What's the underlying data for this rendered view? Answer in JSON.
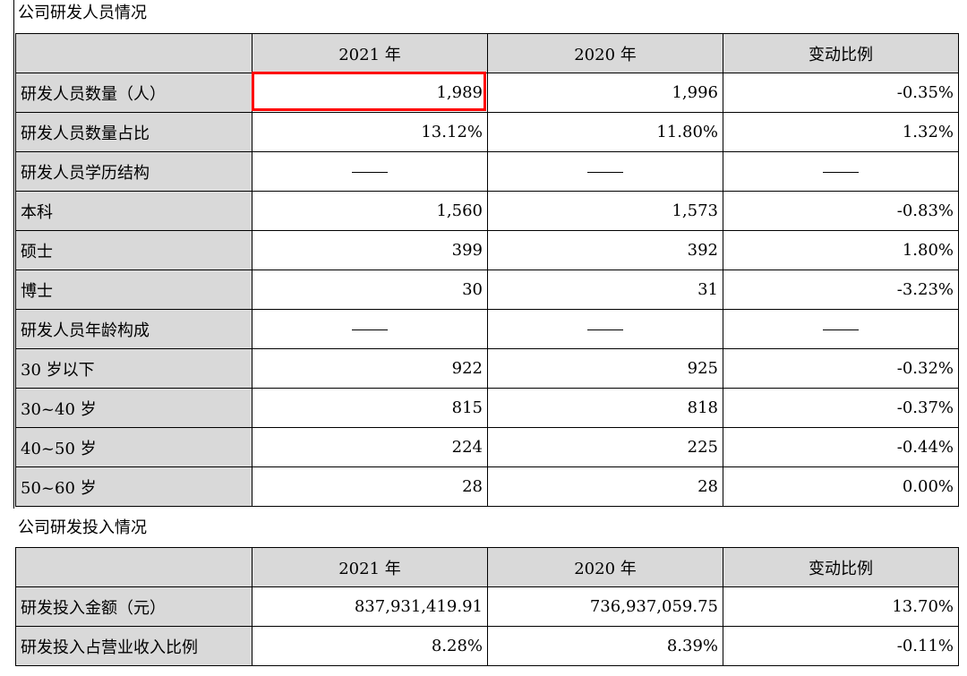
{
  "personnel_section": {
    "title": "公司研发人员情况",
    "headers": [
      "",
      "2021 年",
      "2020 年",
      "变动比例"
    ],
    "rows": [
      {
        "label": "研发人员数量（人）",
        "y2021": "1,989",
        "y2020": "1,996",
        "change": "-0.35%"
      },
      {
        "label": "研发人员数量占比",
        "y2021": "13.12%",
        "y2020": "11.80%",
        "change": "1.32%"
      },
      {
        "label": "研发人员学历结构",
        "y2021": "——",
        "y2020": "——",
        "change": "——"
      },
      {
        "label": "本科",
        "y2021": "1,560",
        "y2020": "1,573",
        "change": "-0.83%"
      },
      {
        "label": "硕士",
        "y2021": "399",
        "y2020": "392",
        "change": "1.80%"
      },
      {
        "label": "博士",
        "y2021": "30",
        "y2020": "31",
        "change": "-3.23%"
      },
      {
        "label": "研发人员年龄构成",
        "y2021": "——",
        "y2020": "——",
        "change": "——"
      },
      {
        "label": "30 岁以下",
        "y2021": "922",
        "y2020": "925",
        "change": "-0.32%"
      },
      {
        "label": "30~40 岁",
        "y2021": "815",
        "y2020": "818",
        "change": "-0.37%"
      },
      {
        "label": "40~50 岁",
        "y2021": "224",
        "y2020": "225",
        "change": "-0.44%"
      },
      {
        "label": "50~60 岁",
        "y2021": "28",
        "y2020": "28",
        "change": "0.00%"
      }
    ]
  },
  "investment_section": {
    "title": "公司研发投入情况",
    "headers": [
      "",
      "2021 年",
      "2020 年",
      "变动比例"
    ],
    "rows": [
      {
        "label": "研发投入金额（元）",
        "y2021": "837,931,419.91",
        "y2020": "736,937,059.75",
        "change": "13.70%"
      },
      {
        "label": "研发投入占营业收入比例",
        "y2021": "8.28%",
        "y2020": "8.39%",
        "change": "-0.11%"
      }
    ]
  },
  "highlight": {
    "color": "#ff0000",
    "target": "研发人员数量 2021 年 1,989"
  }
}
